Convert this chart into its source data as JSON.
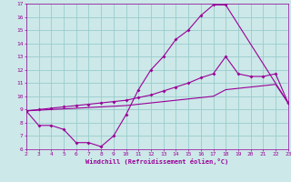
{
  "bg_color": "#cce8e8",
  "grid_color": "#99cccc",
  "line_color": "#990099",
  "xlabel": "Windchill (Refroidissement éolien,°C)",
  "xlim": [
    2,
    23
  ],
  "ylim": [
    6,
    17
  ],
  "yticks": [
    6,
    7,
    8,
    9,
    10,
    11,
    12,
    13,
    14,
    15,
    16,
    17
  ],
  "xticks": [
    2,
    3,
    4,
    5,
    6,
    7,
    8,
    9,
    10,
    11,
    12,
    13,
    14,
    15,
    16,
    17,
    18,
    19,
    20,
    21,
    22,
    23
  ],
  "line1_x": [
    2,
    3,
    4,
    5,
    6,
    7,
    8,
    9,
    10,
    11,
    12,
    13,
    14,
    15,
    16,
    17,
    18,
    23
  ],
  "line1_y": [
    8.9,
    7.8,
    7.8,
    7.5,
    6.5,
    6.5,
    6.2,
    7.0,
    8.6,
    10.5,
    12.0,
    13.0,
    14.3,
    15.0,
    16.1,
    16.9,
    16.9,
    9.5
  ],
  "line2_x": [
    2,
    3,
    4,
    5,
    6,
    7,
    8,
    9,
    10,
    11,
    12,
    13,
    14,
    15,
    16,
    17,
    18,
    19,
    20,
    21,
    22,
    23
  ],
  "line2_y": [
    8.9,
    9.0,
    9.1,
    9.2,
    9.3,
    9.4,
    9.5,
    9.6,
    9.7,
    9.9,
    10.1,
    10.4,
    10.7,
    11.0,
    11.4,
    11.7,
    13.0,
    11.7,
    11.5,
    11.5,
    11.7,
    9.5
  ],
  "line3_x": [
    2,
    3,
    4,
    5,
    6,
    7,
    8,
    9,
    10,
    11,
    12,
    13,
    14,
    15,
    16,
    17,
    18,
    19,
    20,
    21,
    22,
    23
  ],
  "line3_y": [
    8.9,
    8.95,
    9.0,
    9.05,
    9.1,
    9.15,
    9.2,
    9.25,
    9.3,
    9.4,
    9.5,
    9.6,
    9.7,
    9.8,
    9.9,
    10.0,
    10.5,
    10.6,
    10.7,
    10.8,
    10.9,
    9.5
  ]
}
